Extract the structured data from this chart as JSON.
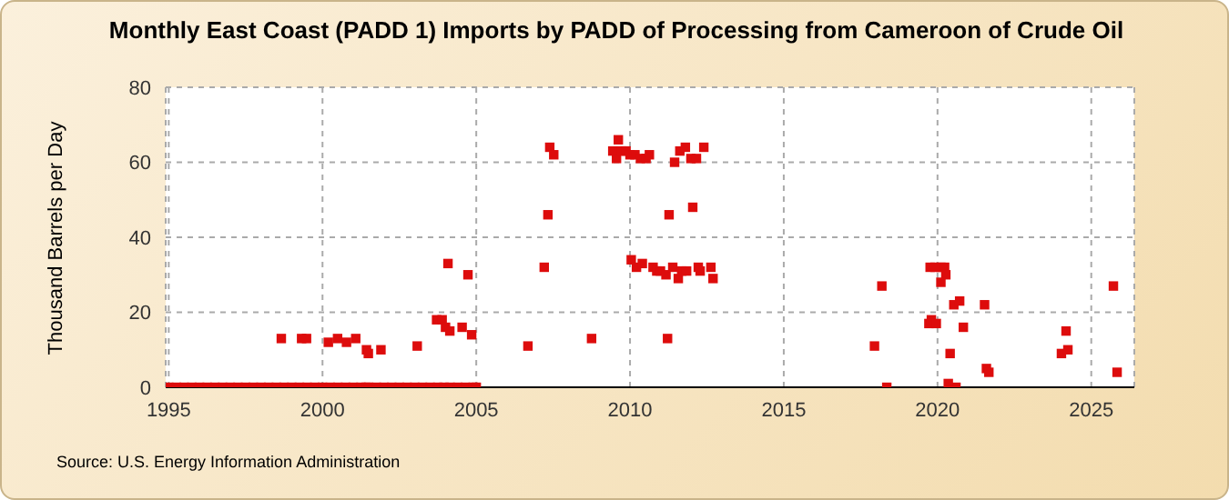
{
  "chart_data": {
    "type": "scatter",
    "title": "Monthly East Coast (PADD 1) Imports by PADD of Processing from Cameroon of Crude Oil",
    "ylabel": "Thousand Barrels per Day",
    "annotations": [
      "Source: U.S. Energy Information Administration"
    ],
    "x": [
      1995.0,
      1995.25,
      1995.5,
      1995.75,
      1996.0,
      1996.25,
      1996.5,
      1996.75,
      1997.0,
      1997.25,
      1997.5,
      1997.75,
      1998.0,
      1998.25,
      1998.5,
      1998.75,
      1999.0,
      1999.25,
      1999.5,
      1999.75,
      2000.0,
      2000.25,
      2000.5,
      2000.75,
      2001.0,
      2001.25,
      2001.42,
      2001.5,
      2001.75,
      2002.0,
      2002.25,
      2002.5,
      2002.75,
      2003.0,
      2003.25,
      2003.5,
      2003.75,
      2003.95,
      2004.15,
      2004.4,
      2004.65,
      2004.9,
      2005.0,
      2018.35,
      2020.6,
      1998.66,
      1999.32,
      1999.48,
      2000.19,
      2000.49,
      2000.78,
      2001.08,
      2001.43,
      2001.49,
      2001.9,
      2003.08,
      2003.71,
      2003.89,
      2004.0,
      2004.08,
      2004.14,
      2004.54,
      2004.73,
      2004.85,
      2006.68,
      2007.21,
      2007.33,
      2007.39,
      2007.52,
      2008.75,
      2009.44,
      2009.56,
      2009.62,
      2009.73,
      2009.87,
      2010.0,
      2010.04,
      2010.16,
      2010.21,
      2010.34,
      2010.4,
      2010.52,
      2010.63,
      2010.75,
      2010.87,
      2010.99,
      2011.17,
      2011.22,
      2011.27,
      2011.39,
      2011.45,
      2011.57,
      2011.62,
      2011.68,
      2011.8,
      2011.84,
      2011.98,
      2012.04,
      2012.16,
      2012.22,
      2012.28,
      2012.4,
      2012.63,
      2012.7,
      2017.95,
      2018.19,
      2019.72,
      2019.8,
      2019.96,
      2019.76,
      2019.92,
      2020.11,
      2020.23,
      2020.11,
      2020.27,
      2020.35,
      2020.41,
      2020.53,
      2020.72,
      2020.84,
      2021.53,
      2021.59,
      2021.67,
      2024.03,
      2024.18,
      2024.24,
      2025.72,
      2025.84
    ],
    "series": [
      {
        "color": "#dd0c0c",
        "values": [
          0,
          0,
          0,
          0,
          0,
          0,
          0,
          0,
          0,
          0,
          0,
          0,
          0,
          0,
          0,
          0,
          0,
          0,
          0,
          0,
          0,
          0,
          0,
          0,
          0,
          0,
          0,
          0,
          0,
          0,
          0,
          0,
          0,
          0,
          0,
          0,
          0,
          0,
          0,
          0,
          0,
          0,
          0,
          0,
          0,
          13,
          13,
          13,
          12,
          13,
          12,
          13,
          10,
          9,
          10,
          11,
          18,
          18,
          16,
          33,
          15,
          16,
          30,
          14,
          11,
          32,
          46,
          64,
          62,
          13,
          63,
          61,
          66,
          63,
          63,
          62,
          34,
          62,
          32,
          61,
          33,
          61,
          62,
          32,
          31,
          31,
          30,
          13,
          46,
          32,
          60,
          29,
          63,
          31,
          64,
          31,
          61,
          48,
          61,
          32,
          31,
          64,
          32,
          29,
          11,
          27,
          17,
          18,
          17,
          32,
          32,
          32,
          32,
          28,
          30,
          1,
          9,
          22,
          23,
          16,
          22,
          5,
          4,
          9,
          15,
          10,
          27,
          4
        ]
      }
    ],
    "xlim": [
      1994.9,
      2026.4
    ],
    "xticks": [
      1995,
      2000,
      2005,
      2010,
      2015,
      2020,
      2025
    ],
    "ylim": [
      0,
      80
    ],
    "yticks": [
      0,
      20,
      40,
      60,
      80
    ],
    "grid": true,
    "marker": "square"
  }
}
